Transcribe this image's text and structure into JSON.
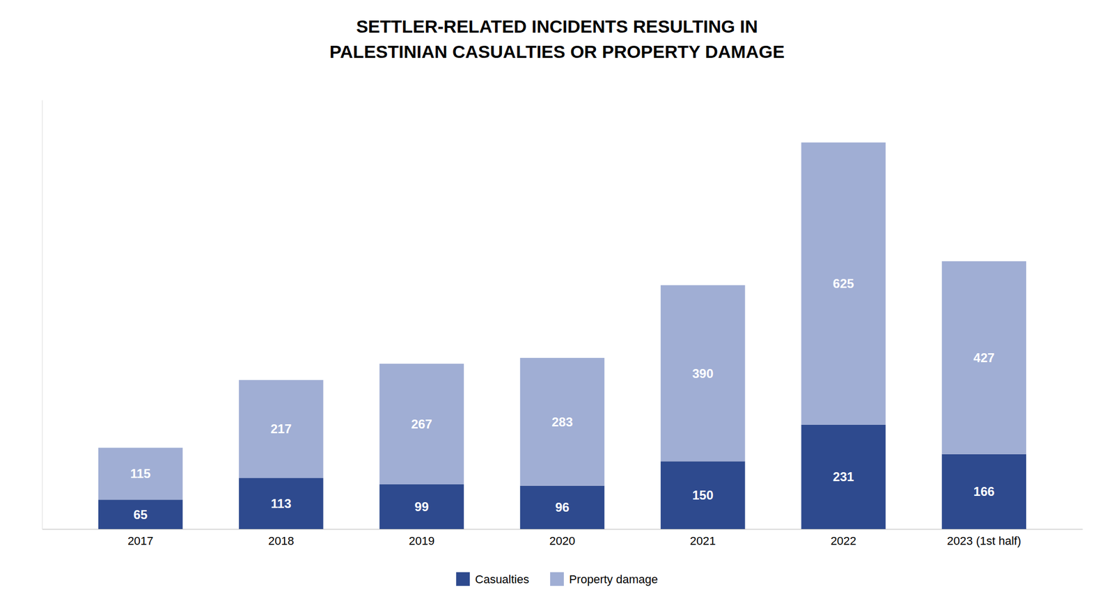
{
  "chart_data": {
    "type": "bar",
    "title": "SETTLER-RELATED INCIDENTS RESULTING IN\nPALESTINIAN CASUALTIES OR PROPERTY DAMAGE",
    "categories": [
      "2017",
      "2018",
      "2019",
      "2020",
      "2021",
      "2022",
      "2023 (1st half)"
    ],
    "series": [
      {
        "name": "Casualties",
        "color": "#2e4a8e",
        "values": [
          65,
          113,
          99,
          96,
          150,
          231,
          166
        ]
      },
      {
        "name": "Property damage",
        "color": "#a0aed4",
        "values": [
          115,
          217,
          267,
          283,
          390,
          625,
          427
        ]
      }
    ],
    "ylim": [
      0,
      950
    ],
    "stacked": true,
    "data_labels": true,
    "tick_labels": "x",
    "grid": false,
    "legend": "bottom"
  }
}
